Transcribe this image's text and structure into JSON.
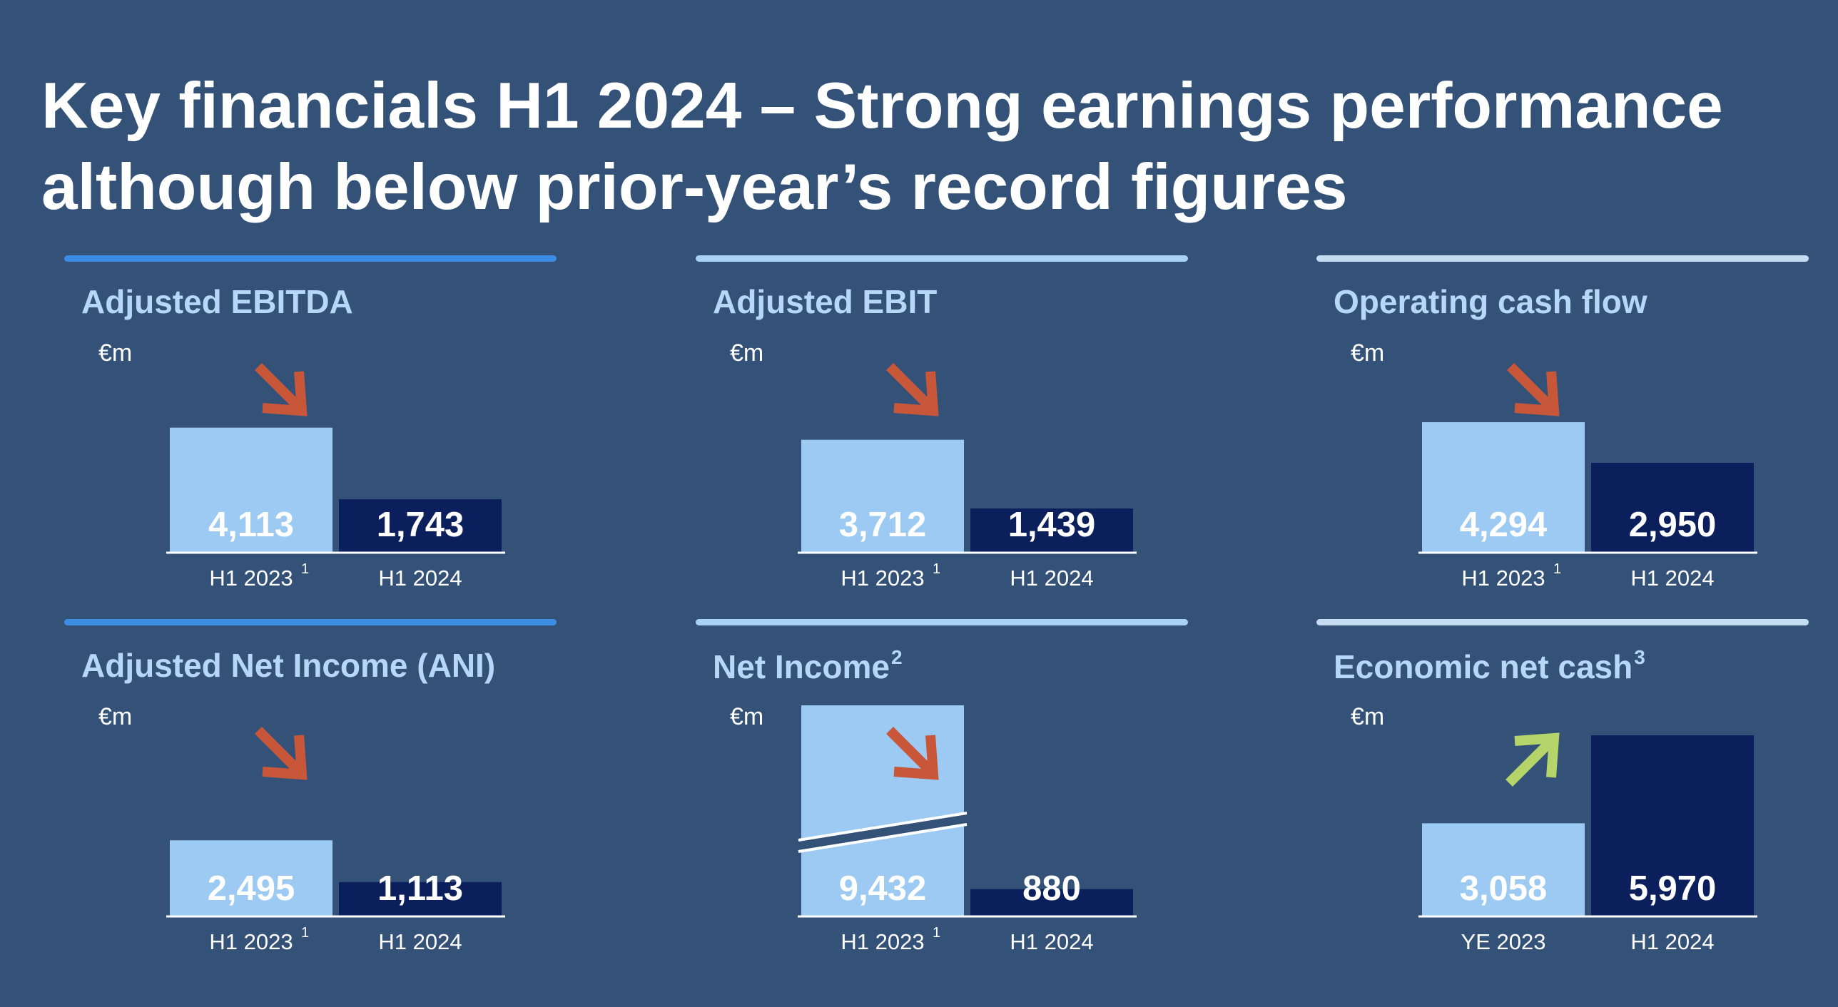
{
  "title": {
    "line1": "Key financials H1 2024 – Strong earnings performance",
    "line2": "although below prior-year’s record figures"
  },
  "colors": {
    "background": "#345278",
    "prior_bar": "#9ccaf2",
    "current_bar": "#0b1f5c",
    "panel_title": "#b6d8f6",
    "arrow_down": "#c8573a",
    "arrow_up": "#b5d46a",
    "rule_dark": "#3c8ee4",
    "rule_light": "#a9d2f5",
    "rule_pale": "#c6dcf1"
  },
  "chart_data": [
    {
      "type": "bar",
      "title": "Adjusted EBITDA",
      "unit": "€m",
      "categories": [
        "H1 2023",
        "H1 2024"
      ],
      "footnote_marks": [
        "1",
        ""
      ],
      "values": [
        4113,
        1743
      ],
      "value_labels": [
        "4,113",
        "1,743"
      ],
      "trend_icon": "arrow-down-right-icon"
    },
    {
      "type": "bar",
      "title": "Adjusted EBIT",
      "unit": "€m",
      "categories": [
        "H1 2023",
        "H1 2024"
      ],
      "footnote_marks": [
        "1",
        ""
      ],
      "values": [
        3712,
        1439
      ],
      "value_labels": [
        "3,712",
        "1,439"
      ],
      "trend_icon": "arrow-down-right-icon"
    },
    {
      "type": "bar",
      "title": "Operating cash flow",
      "unit": "€m",
      "categories": [
        "H1 2023",
        "H1 2024"
      ],
      "footnote_marks": [
        "1",
        ""
      ],
      "values": [
        4294,
        2950
      ],
      "value_labels": [
        "4,294",
        "2,950"
      ],
      "trend_icon": "arrow-down-right-icon"
    },
    {
      "type": "bar",
      "title": "Adjusted Net Income (ANI)",
      "unit": "€m",
      "categories": [
        "H1 2023",
        "H1 2024"
      ],
      "footnote_marks": [
        "1",
        ""
      ],
      "values": [
        2495,
        1113
      ],
      "value_labels": [
        "2,495",
        "1,113"
      ],
      "trend_icon": "arrow-down-right-icon"
    },
    {
      "type": "bar",
      "title": "Net Income",
      "title_sup": "2",
      "unit": "€m",
      "categories": [
        "H1 2023",
        "H1 2024"
      ],
      "footnote_marks": [
        "1",
        ""
      ],
      "values": [
        9432,
        880
      ],
      "value_labels": [
        "9,432",
        "880"
      ],
      "axis_break": true,
      "trend_icon": "arrow-down-right-icon"
    },
    {
      "type": "bar",
      "title": "Economic net cash",
      "title_sup": "3",
      "unit": "€m",
      "categories": [
        "YE 2023",
        "H1 2024"
      ],
      "footnote_marks": [
        "",
        ""
      ],
      "values": [
        3058,
        5970
      ],
      "value_labels": [
        "3,058",
        "5,970"
      ],
      "trend_icon": "arrow-up-right-icon"
    }
  ]
}
